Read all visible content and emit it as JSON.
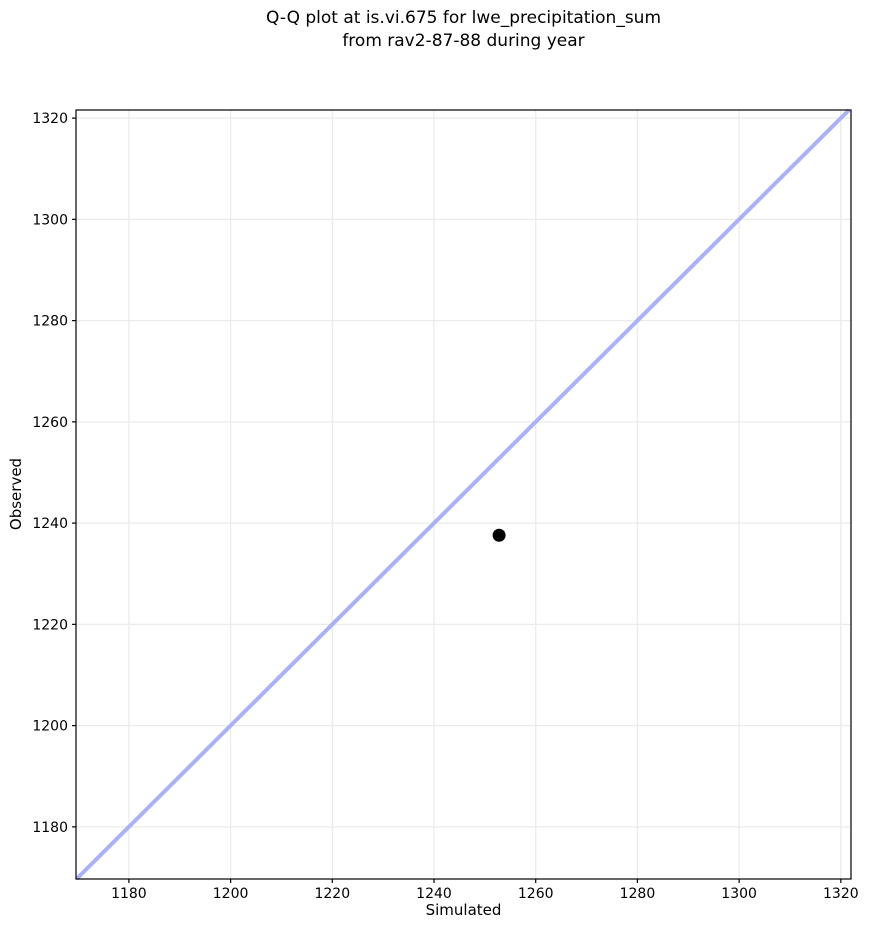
{
  "chart_data": {
    "type": "scatter",
    "title": "Q-Q plot at is.vi.675 for lwe_precipitation_sum\nfrom rav2-87-88 during year",
    "title_lines": [
      "Q-Q plot at is.vi.675 for lwe_precipitation_sum",
      "from rav2-87-88 during year"
    ],
    "xlabel": "Simulated",
    "ylabel": "Observed",
    "xlim": [
      1169.6,
      1322.0
    ],
    "ylim": [
      1169.7,
      1321.6
    ],
    "xticks": [
      1180,
      1200,
      1220,
      1240,
      1260,
      1280,
      1300,
      1320
    ],
    "yticks": [
      1180,
      1200,
      1220,
      1240,
      1260,
      1280,
      1300,
      1320
    ],
    "grid": true,
    "legend": false,
    "points": [
      {
        "simulated": 1252.8,
        "observed": 1237.6
      }
    ],
    "identity_line": {
      "description": "y = x reference line, corner to corner",
      "from": 1169.7,
      "to": 1321.6,
      "color": "#aab1f5",
      "width": 4
    },
    "point_style": {
      "color": "#000000",
      "radius": 6.5
    },
    "grid_color": "#ebebeb",
    "spine_color": "#000000",
    "background_color": "#ffffff",
    "tick_length": 4
  }
}
